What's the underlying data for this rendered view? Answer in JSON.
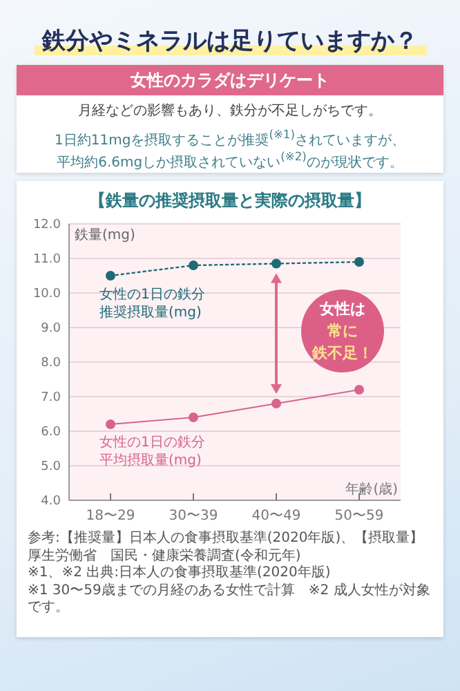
{
  "chart_data": {
    "type": "line",
    "title": "【鉄量の推奨摂取量と実際の摂取量】",
    "xlabel": "年齢(歳)",
    "ylabel": "鉄量(mg)",
    "categories": [
      "18〜29",
      "30〜39",
      "40〜49",
      "50〜59"
    ],
    "series": [
      {
        "name": "女性の1日の鉄分推奨摂取量(mg)",
        "color": "#1d6b74",
        "values": [
          10.5,
          10.8,
          10.85,
          10.9
        ],
        "line_style": "dotted"
      },
      {
        "name": "女性の1日の鉄分平均摂取量(mg)",
        "color": "#d8648c",
        "values": [
          6.2,
          6.4,
          6.8,
          7.2
        ],
        "line_style": "solid"
      }
    ],
    "ylim": [
      4,
      12
    ],
    "yticks": [
      {
        "value": 4,
        "label": "4.0"
      },
      {
        "value": 5,
        "label": "5.0"
      },
      {
        "value": 6,
        "label": "6.0"
      },
      {
        "value": 7,
        "label": "7.0"
      },
      {
        "value": 8,
        "label": "8.0"
      },
      {
        "value": 9,
        "label": "9.0"
      },
      {
        "value": 10,
        "label": "10.0"
      },
      {
        "value": 11,
        "label": "11.0"
      },
      {
        "value": 12,
        "label": "12.0"
      }
    ],
    "grid": "y",
    "marker": "circle",
    "annotations": [
      "鉄分やミネラルは足りていますか？",
      "女性のカラダはデリケート",
      "月経などの影響もあり、鉄分が不足しがちです。",
      "1日約11mgを摂取することが推奨$^{(※1)}$されていますが、",
      "平均約6.6mgしか摂取されていない$^{(※2)}$のが現状です。",
      "女性は",
      "常に",
      "鉄不足！",
      "参考:【推奨量】日本人の食事摂取基準(2020年版)、【摂取量】厚生労働省　国民・健康栄養調査(令和元年)",
      "※1、※2 出典:日本人の食事摂取基準(2020年版)",
      "※1 30〜59歳までの月経のある女性で計算　※2 成人女性が対象です。"
    ]
  }
}
